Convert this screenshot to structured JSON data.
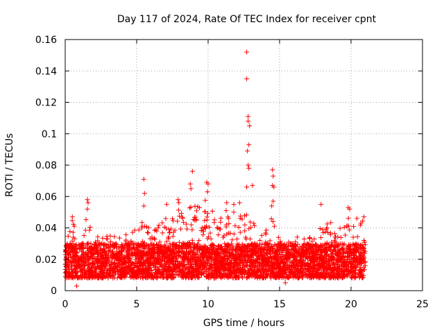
{
  "chart_data": {
    "type": "scatter",
    "title": "Day 117 of 2024, Rate Of TEC Index for receiver cpnt",
    "xlabel": "GPS time / hours",
    "ylabel": "ROTI / TECUs",
    "xlim": [
      0,
      25
    ],
    "ylim": [
      0,
      0.16
    ],
    "xticks": [
      0,
      5,
      10,
      15,
      20,
      25
    ],
    "xtick_labels": [
      "0",
      "5",
      "10",
      "15",
      "20",
      "25"
    ],
    "yticks": [
      0,
      0.02,
      0.04,
      0.06,
      0.08,
      0.1,
      0.12,
      0.14,
      0.16
    ],
    "ytick_labels": [
      "0",
      "0.02",
      "0.04",
      "0.06",
      "0.08",
      "0.1",
      "0.12",
      "0.14",
      "0.16"
    ],
    "grid": true,
    "marker": "+",
    "color": "#ff0000",
    "data_range_hours": [
      0,
      21
    ],
    "baseline_band": [
      0.008,
      0.03
    ],
    "notable_points": [
      {
        "x": 12.7,
        "y": 0.152
      },
      {
        "x": 12.7,
        "y": 0.135
      },
      {
        "x": 12.8,
        "y": 0.111
      },
      {
        "x": 12.8,
        "y": 0.108
      },
      {
        "x": 12.9,
        "y": 0.105
      },
      {
        "x": 12.85,
        "y": 0.093
      },
      {
        "x": 12.75,
        "y": 0.089
      },
      {
        "x": 12.8,
        "y": 0.08
      },
      {
        "x": 12.85,
        "y": 0.078
      },
      {
        "x": 12.7,
        "y": 0.066
      },
      {
        "x": 13.1,
        "y": 0.067
      },
      {
        "x": 14.5,
        "y": 0.077
      },
      {
        "x": 14.55,
        "y": 0.073
      },
      {
        "x": 14.5,
        "y": 0.067
      },
      {
        "x": 14.6,
        "y": 0.066
      },
      {
        "x": 14.55,
        "y": 0.057
      },
      {
        "x": 14.45,
        "y": 0.054
      },
      {
        "x": 5.5,
        "y": 0.071
      },
      {
        "x": 5.55,
        "y": 0.062
      },
      {
        "x": 5.5,
        "y": 0.054
      },
      {
        "x": 8.9,
        "y": 0.076
      },
      {
        "x": 8.75,
        "y": 0.068
      },
      {
        "x": 8.8,
        "y": 0.065
      },
      {
        "x": 9.9,
        "y": 0.069
      },
      {
        "x": 10.0,
        "y": 0.068
      },
      {
        "x": 9.95,
        "y": 0.063
      },
      {
        "x": 1.55,
        "y": 0.058
      },
      {
        "x": 1.6,
        "y": 0.056
      },
      {
        "x": 1.55,
        "y": 0.052
      },
      {
        "x": 7.1,
        "y": 0.055
      },
      {
        "x": 7.9,
        "y": 0.058
      },
      {
        "x": 7.95,
        "y": 0.056
      },
      {
        "x": 11.3,
        "y": 0.056
      },
      {
        "x": 11.8,
        "y": 0.055
      },
      {
        "x": 12.2,
        "y": 0.056
      },
      {
        "x": 17.9,
        "y": 0.055
      },
      {
        "x": 19.8,
        "y": 0.053
      },
      {
        "x": 19.9,
        "y": 0.052
      },
      {
        "x": 0.5,
        "y": 0.047
      },
      {
        "x": 0.0,
        "y": 0.023
      },
      {
        "x": 0.8,
        "y": 0.003
      },
      {
        "x": 15.4,
        "y": 0.005
      },
      {
        "x": 20.9,
        "y": 0.047
      }
    ],
    "activity_envelope": [
      {
        "x": 0.0,
        "y": 0.032
      },
      {
        "x": 0.5,
        "y": 0.045
      },
      {
        "x": 1.0,
        "y": 0.035
      },
      {
        "x": 1.5,
        "y": 0.05
      },
      {
        "x": 2.0,
        "y": 0.035
      },
      {
        "x": 3.0,
        "y": 0.037
      },
      {
        "x": 4.0,
        "y": 0.034
      },
      {
        "x": 4.5,
        "y": 0.038
      },
      {
        "x": 5.0,
        "y": 0.04
      },
      {
        "x": 5.5,
        "y": 0.045
      },
      {
        "x": 6.0,
        "y": 0.038
      },
      {
        "x": 6.5,
        "y": 0.042
      },
      {
        "x": 7.0,
        "y": 0.047
      },
      {
        "x": 7.5,
        "y": 0.048
      },
      {
        "x": 8.0,
        "y": 0.052
      },
      {
        "x": 8.5,
        "y": 0.05
      },
      {
        "x": 9.0,
        "y": 0.058
      },
      {
        "x": 9.5,
        "y": 0.055
      },
      {
        "x": 10.0,
        "y": 0.06
      },
      {
        "x": 10.5,
        "y": 0.048
      },
      {
        "x": 11.0,
        "y": 0.05
      },
      {
        "x": 11.5,
        "y": 0.052
      },
      {
        "x": 12.0,
        "y": 0.05
      },
      {
        "x": 12.5,
        "y": 0.05
      },
      {
        "x": 13.0,
        "y": 0.048
      },
      {
        "x": 13.5,
        "y": 0.042
      },
      {
        "x": 14.0,
        "y": 0.04
      },
      {
        "x": 14.5,
        "y": 0.047
      },
      {
        "x": 15.0,
        "y": 0.035
      },
      {
        "x": 15.5,
        "y": 0.032
      },
      {
        "x": 16.0,
        "y": 0.034
      },
      {
        "x": 16.5,
        "y": 0.036
      },
      {
        "x": 17.0,
        "y": 0.033
      },
      {
        "x": 17.5,
        "y": 0.038
      },
      {
        "x": 18.0,
        "y": 0.046
      },
      {
        "x": 18.5,
        "y": 0.044
      },
      {
        "x": 19.0,
        "y": 0.045
      },
      {
        "x": 19.5,
        "y": 0.046
      },
      {
        "x": 20.0,
        "y": 0.052
      },
      {
        "x": 20.5,
        "y": 0.045
      },
      {
        "x": 21.0,
        "y": 0.047
      }
    ]
  }
}
